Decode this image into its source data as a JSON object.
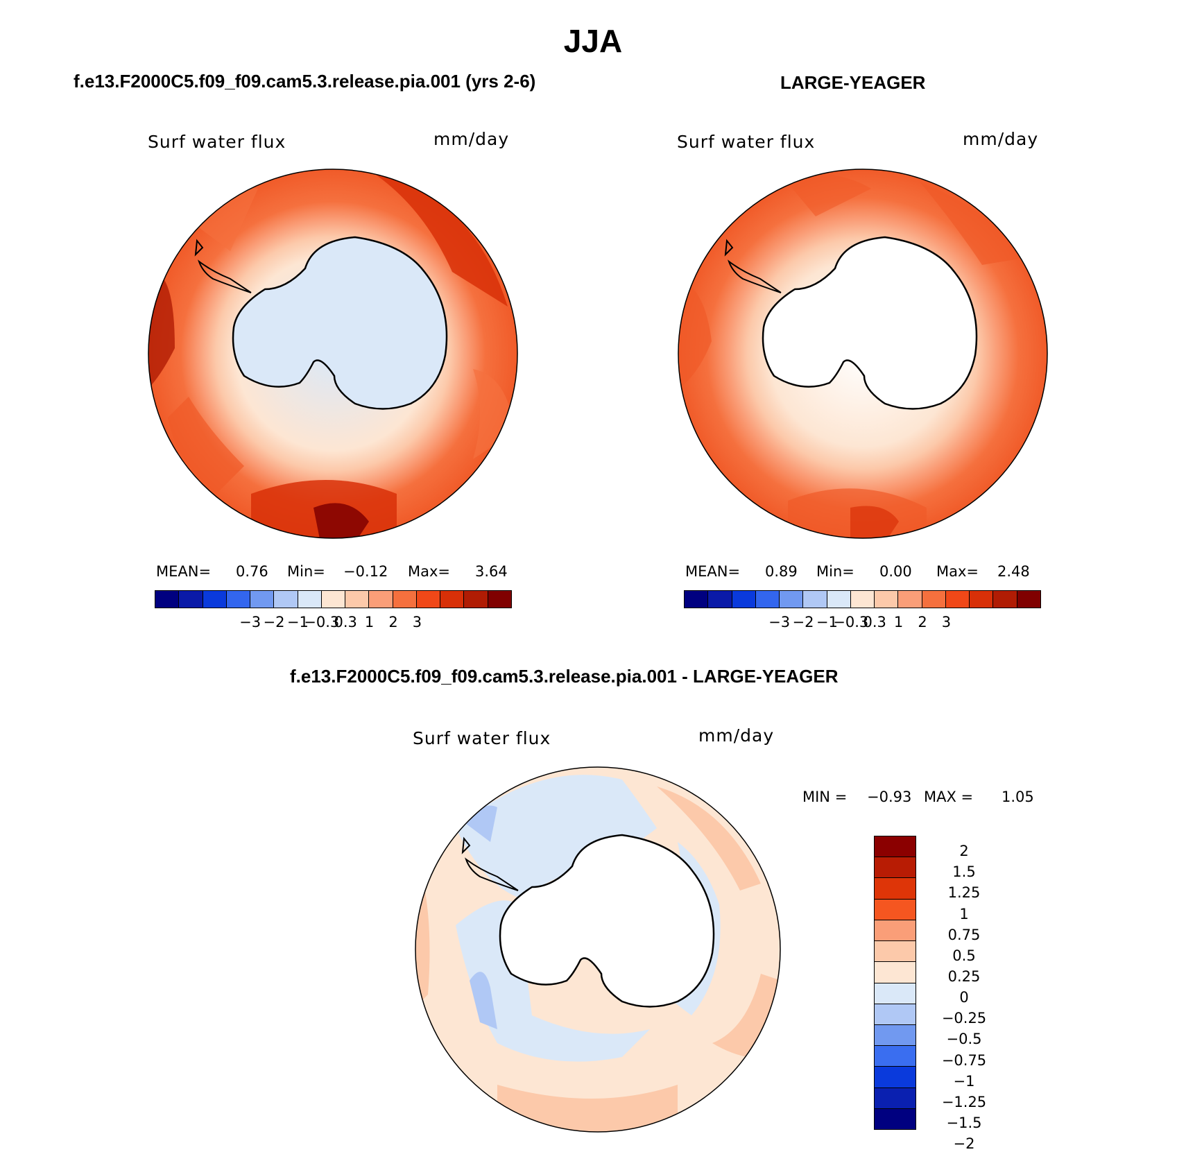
{
  "title": "JJA",
  "panels": {
    "top_left": {
      "case_title": "f.e13.F2000C5.f09_f09.cam5.3.release.pia.001 (yrs 2-6)",
      "field_label": "Surf water flux",
      "units": "mm/day",
      "stats": {
        "mean_label": "MEAN=",
        "mean": "0.76",
        "min_label": "Min=",
        "min": "−0.12",
        "max_label": "Max=",
        "max": "3.64"
      }
    },
    "top_right": {
      "case_title": "LARGE-YEAGER",
      "field_label": "Surf water flux",
      "units": "mm/day",
      "stats": {
        "mean_label": "MEAN=",
        "mean": "0.89",
        "min_label": "Min=",
        "min": "0.00",
        "max_label": "Max=",
        "max": "2.48"
      }
    },
    "bottom": {
      "case_title": "f.e13.F2000C5.f09_f09.cam5.3.release.pia.001 - LARGE-YEAGER",
      "field_label": "Surf water flux",
      "units": "mm/day",
      "stats": {
        "min_label": "MIN =",
        "min": "−0.93",
        "max_label": "MAX =",
        "max": "1.05"
      }
    }
  },
  "colorbars": {
    "abs": {
      "colors": [
        "#000080",
        "#0a1aa8",
        "#0a3adc",
        "#3366ee",
        "#7199f0",
        "#b0c8f5",
        "#dae8f8",
        "#fde6d3",
        "#fcc9aa",
        "#fa9e78",
        "#f5703e",
        "#f04818",
        "#d83008",
        "#b01c04",
        "#800000"
      ],
      "ticks": [
        "−3",
        "−2",
        "−1",
        "−0.3",
        "0.3",
        "1",
        "2",
        "3"
      ]
    },
    "diff": {
      "colors_top_to_bottom": [
        "#8b0000",
        "#b81c04",
        "#de3508",
        "#f55620",
        "#fa9e78",
        "#fcc9aa",
        "#fde6d3",
        "#dae8f8",
        "#b0c8f5",
        "#7199f0",
        "#3a6ef0",
        "#0a3adc",
        "#0a20b0",
        "#000080"
      ],
      "ticks_top_to_bottom": [
        "2",
        "1.5",
        "1.25",
        "1",
        "0.75",
        "0.5",
        "0.25",
        "0",
        "−0.25",
        "−0.5",
        "−0.75",
        "−1",
        "−1.25",
        "−1.5",
        "−2"
      ]
    }
  },
  "chart_data": [
    {
      "type": "heatmap",
      "title": "f.e13.F2000C5.f09_f09.cam5.3.release.pia.001 (yrs 2-6)",
      "variable": "Surf water flux",
      "units": "mm/day",
      "projection": "south polar stereographic",
      "contour_levels": [
        -3,
        -2,
        -1,
        -0.3,
        0.3,
        1,
        2,
        3
      ],
      "mean": 0.76,
      "min": -0.12,
      "max": 3.64
    },
    {
      "type": "heatmap",
      "title": "LARGE-YEAGER",
      "variable": "Surf water flux",
      "units": "mm/day",
      "projection": "south polar stereographic",
      "contour_levels": [
        -3,
        -2,
        -1,
        -0.3,
        0.3,
        1,
        2,
        3
      ],
      "mean": 0.89,
      "min": 0.0,
      "max": 2.48
    },
    {
      "type": "heatmap",
      "title": "f.e13.F2000C5.f09_f09.cam5.3.release.pia.001 - LARGE-YEAGER",
      "variable": "Surf water flux",
      "units": "mm/day",
      "projection": "south polar stereographic",
      "contour_levels": [
        -2,
        -1.5,
        -1.25,
        -1,
        -0.75,
        -0.5,
        -0.25,
        0,
        0.25,
        0.5,
        0.75,
        1,
        1.25,
        1.5,
        2
      ],
      "min": -0.93,
      "max": 1.05
    }
  ]
}
